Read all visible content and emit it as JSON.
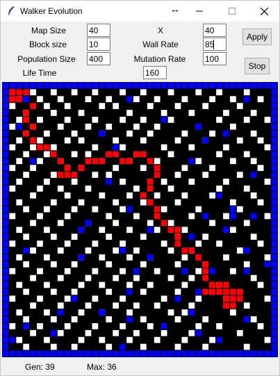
{
  "window": {
    "title": "Walker Evolution",
    "resize_glyph": "↔",
    "minimize_glyph": "—",
    "maximize_glyph": "☐",
    "close_glyph": "✕"
  },
  "params": {
    "map_size": {
      "label": "Map Size",
      "value": "40"
    },
    "block_size": {
      "label": "Block size",
      "value": "10"
    },
    "population_size": {
      "label": "Population Size",
      "value": "400"
    },
    "life_time": {
      "label": "Life Time",
      "value": "160"
    },
    "x": {
      "label": "X",
      "value": "40"
    },
    "wall_rate": {
      "label": "Wall Rate",
      "value": "85"
    },
    "mutation_rate": {
      "label": "Mutation Rate",
      "value": "100"
    }
  },
  "buttons": {
    "apply": "Apply",
    "stop": "Stop"
  },
  "status": {
    "gen": "Gen: 39",
    "max": "Max: 36"
  },
  "colors": {
    "border": "#0000ff",
    "wall": "#ffffff",
    "walker_path": "#ff0000",
    "obstacle": "#0000ff",
    "background": "#000000"
  },
  "map": {
    "cols": 40,
    "rows": 40,
    "walls": [
      [
        1,
        1
      ],
      [
        4,
        1
      ],
      [
        7,
        1
      ],
      [
        10,
        1
      ],
      [
        13,
        1
      ],
      [
        17,
        1
      ],
      [
        20,
        1
      ],
      [
        24,
        1
      ],
      [
        28,
        1
      ],
      [
        31,
        1
      ],
      [
        35,
        1
      ],
      [
        2,
        2
      ],
      [
        5,
        2
      ],
      [
        8,
        2
      ],
      [
        12,
        2
      ],
      [
        15,
        2
      ],
      [
        19,
        2
      ],
      [
        22,
        2
      ],
      [
        26,
        2
      ],
      [
        30,
        2
      ],
      [
        33,
        2
      ],
      [
        37,
        2
      ],
      [
        1,
        3
      ],
      [
        6,
        3
      ],
      [
        9,
        3
      ],
      [
        14,
        3
      ],
      [
        16,
        3
      ],
      [
        21,
        3
      ],
      [
        25,
        3
      ],
      [
        29,
        3
      ],
      [
        34,
        3
      ],
      [
        3,
        4
      ],
      [
        7,
        4
      ],
      [
        11,
        4
      ],
      [
        18,
        4
      ],
      [
        23,
        4
      ],
      [
        27,
        4
      ],
      [
        32,
        4
      ],
      [
        36,
        4
      ],
      [
        2,
        5
      ],
      [
        5,
        5
      ],
      [
        9,
        5
      ],
      [
        13,
        5
      ],
      [
        17,
        5
      ],
      [
        20,
        5
      ],
      [
        24,
        5
      ],
      [
        31,
        5
      ],
      [
        35,
        5
      ],
      [
        38,
        5
      ],
      [
        1,
        6
      ],
      [
        4,
        6
      ],
      [
        8,
        6
      ],
      [
        12,
        6
      ],
      [
        15,
        6
      ],
      [
        19,
        6
      ],
      [
        22,
        6
      ],
      [
        28,
        6
      ],
      [
        33,
        6
      ],
      [
        3,
        7
      ],
      [
        6,
        7
      ],
      [
        10,
        7
      ],
      [
        14,
        7
      ],
      [
        18,
        7
      ],
      [
        21,
        7
      ],
      [
        26,
        7
      ],
      [
        30,
        7
      ],
      [
        36,
        7
      ],
      [
        2,
        8
      ],
      [
        5,
        8
      ],
      [
        9,
        8
      ],
      [
        11,
        8
      ],
      [
        16,
        8
      ],
      [
        20,
        8
      ],
      [
        25,
        8
      ],
      [
        29,
        8
      ],
      [
        34,
        8
      ],
      [
        37,
        8
      ],
      [
        1,
        9
      ],
      [
        4,
        9
      ],
      [
        7,
        9
      ],
      [
        13,
        9
      ],
      [
        17,
        9
      ],
      [
        23,
        9
      ],
      [
        27,
        9
      ],
      [
        32,
        9
      ],
      [
        38,
        9
      ],
      [
        3,
        10
      ],
      [
        6,
        10
      ],
      [
        10,
        10
      ],
      [
        12,
        10
      ],
      [
        15,
        10
      ],
      [
        19,
        10
      ],
      [
        24,
        10
      ],
      [
        31,
        10
      ],
      [
        35,
        10
      ],
      [
        2,
        11
      ],
      [
        5,
        11
      ],
      [
        8,
        11
      ],
      [
        14,
        11
      ],
      [
        18,
        11
      ],
      [
        22,
        11
      ],
      [
        28,
        11
      ],
      [
        33,
        11
      ],
      [
        36,
        11
      ],
      [
        1,
        12
      ],
      [
        4,
        12
      ],
      [
        9,
        12
      ],
      [
        11,
        12
      ],
      [
        16,
        12
      ],
      [
        20,
        12
      ],
      [
        26,
        12
      ],
      [
        30,
        12
      ],
      [
        37,
        12
      ],
      [
        3,
        13
      ],
      [
        7,
        13
      ],
      [
        13,
        13
      ],
      [
        15,
        13
      ],
      [
        25,
        13
      ],
      [
        29,
        13
      ],
      [
        34,
        13
      ],
      [
        2,
        14
      ],
      [
        6,
        14
      ],
      [
        10,
        14
      ],
      [
        17,
        14
      ],
      [
        23,
        14
      ],
      [
        27,
        14
      ],
      [
        32,
        14
      ],
      [
        38,
        14
      ],
      [
        1,
        15
      ],
      [
        5,
        15
      ],
      [
        8,
        15
      ],
      [
        12,
        15
      ],
      [
        19,
        15
      ],
      [
        24,
        15
      ],
      [
        31,
        15
      ],
      [
        35,
        15
      ],
      [
        4,
        16
      ],
      [
        9,
        16
      ],
      [
        14,
        16
      ],
      [
        18,
        16
      ],
      [
        22,
        16
      ],
      [
        26,
        16
      ],
      [
        30,
        16
      ],
      [
        36,
        16
      ],
      [
        2,
        17
      ],
      [
        7,
        17
      ],
      [
        11,
        17
      ],
      [
        16,
        17
      ],
      [
        20,
        17
      ],
      [
        25,
        17
      ],
      [
        33,
        17
      ],
      [
        37,
        17
      ],
      [
        3,
        18
      ],
      [
        6,
        18
      ],
      [
        10,
        18
      ],
      [
        13,
        18
      ],
      [
        17,
        18
      ],
      [
        23,
        18
      ],
      [
        28,
        18
      ],
      [
        34,
        18
      ],
      [
        1,
        19
      ],
      [
        5,
        19
      ],
      [
        9,
        19
      ],
      [
        15,
        19
      ],
      [
        19,
        19
      ],
      [
        27,
        19
      ],
      [
        32,
        19
      ],
      [
        38,
        19
      ],
      [
        4,
        20
      ],
      [
        8,
        20
      ],
      [
        12,
        20
      ],
      [
        16,
        20
      ],
      [
        21,
        20
      ],
      [
        24,
        20
      ],
      [
        30,
        20
      ],
      [
        35,
        20
      ],
      [
        2,
        21
      ],
      [
        6,
        21
      ],
      [
        11,
        21
      ],
      [
        14,
        21
      ],
      [
        18,
        21
      ],
      [
        22,
        21
      ],
      [
        26,
        21
      ],
      [
        33,
        21
      ],
      [
        3,
        22
      ],
      [
        7,
        22
      ],
      [
        10,
        22
      ],
      [
        15,
        22
      ],
      [
        20,
        22
      ],
      [
        25,
        22
      ],
      [
        29,
        22
      ],
      [
        36,
        22
      ],
      [
        1,
        23
      ],
      [
        5,
        23
      ],
      [
        9,
        23
      ],
      [
        13,
        23
      ],
      [
        17,
        23
      ],
      [
        23,
        23
      ],
      [
        28,
        23
      ],
      [
        31,
        23
      ],
      [
        37,
        23
      ],
      [
        4,
        24
      ],
      [
        8,
        24
      ],
      [
        12,
        24
      ],
      [
        16,
        24
      ],
      [
        19,
        24
      ],
      [
        24,
        24
      ],
      [
        27,
        24
      ],
      [
        34,
        24
      ],
      [
        2,
        25
      ],
      [
        6,
        25
      ],
      [
        11,
        25
      ],
      [
        14,
        25
      ],
      [
        18,
        25
      ],
      [
        21,
        25
      ],
      [
        26,
        25
      ],
      [
        32,
        25
      ],
      [
        38,
        25
      ],
      [
        3,
        26
      ],
      [
        7,
        26
      ],
      [
        10,
        26
      ],
      [
        15,
        26
      ],
      [
        20,
        26
      ],
      [
        25,
        26
      ],
      [
        29,
        26
      ],
      [
        35,
        26
      ],
      [
        1,
        27
      ],
      [
        5,
        27
      ],
      [
        9,
        27
      ],
      [
        13,
        27
      ],
      [
        17,
        27
      ],
      [
        22,
        27
      ],
      [
        28,
        27
      ],
      [
        33,
        27
      ],
      [
        4,
        28
      ],
      [
        8,
        28
      ],
      [
        12,
        28
      ],
      [
        16,
        28
      ],
      [
        19,
        28
      ],
      [
        24,
        28
      ],
      [
        27,
        28
      ],
      [
        36,
        28
      ],
      [
        2,
        29
      ],
      [
        6,
        29
      ],
      [
        11,
        29
      ],
      [
        14,
        29
      ],
      [
        18,
        29
      ],
      [
        21,
        29
      ],
      [
        26,
        29
      ],
      [
        31,
        29
      ],
      [
        37,
        29
      ],
      [
        3,
        30
      ],
      [
        7,
        30
      ],
      [
        10,
        30
      ],
      [
        15,
        30
      ],
      [
        20,
        30
      ],
      [
        25,
        30
      ],
      [
        30,
        30
      ],
      [
        34,
        30
      ],
      [
        1,
        31
      ],
      [
        5,
        31
      ],
      [
        9,
        31
      ],
      [
        13,
        31
      ],
      [
        17,
        31
      ],
      [
        23,
        31
      ],
      [
        28,
        31
      ],
      [
        32,
        31
      ],
      [
        38,
        31
      ],
      [
        4,
        32
      ],
      [
        8,
        32
      ],
      [
        12,
        32
      ],
      [
        16,
        32
      ],
      [
        19,
        32
      ],
      [
        22,
        32
      ],
      [
        27,
        32
      ],
      [
        35,
        32
      ],
      [
        2,
        33
      ],
      [
        6,
        33
      ],
      [
        11,
        33
      ],
      [
        14,
        33
      ],
      [
        18,
        33
      ],
      [
        24,
        33
      ],
      [
        26,
        33
      ],
      [
        33,
        33
      ],
      [
        3,
        34
      ],
      [
        7,
        34
      ],
      [
        10,
        34
      ],
      [
        15,
        34
      ],
      [
        20,
        34
      ],
      [
        25,
        34
      ],
      [
        29,
        34
      ],
      [
        36,
        34
      ],
      [
        1,
        35
      ],
      [
        5,
        35
      ],
      [
        9,
        35
      ],
      [
        13,
        35
      ],
      [
        17,
        35
      ],
      [
        21,
        35
      ],
      [
        28,
        35
      ],
      [
        31,
        35
      ],
      [
        37,
        35
      ],
      [
        4,
        36
      ],
      [
        8,
        36
      ],
      [
        12,
        36
      ],
      [
        16,
        36
      ],
      [
        19,
        36
      ],
      [
        23,
        36
      ],
      [
        27,
        36
      ],
      [
        34,
        36
      ],
      [
        2,
        37
      ],
      [
        6,
        37
      ],
      [
        11,
        37
      ],
      [
        14,
        37
      ],
      [
        18,
        37
      ],
      [
        22,
        37
      ],
      [
        26,
        37
      ],
      [
        30,
        37
      ],
      [
        38,
        37
      ],
      [
        3,
        38
      ],
      [
        7,
        38
      ],
      [
        10,
        38
      ],
      [
        15,
        38
      ],
      [
        20,
        38
      ],
      [
        25,
        38
      ],
      [
        29,
        38
      ],
      [
        35,
        38
      ]
    ],
    "blues": [
      [
        3,
        2
      ],
      [
        18,
        2
      ],
      [
        35,
        2
      ],
      [
        2,
        6
      ],
      [
        23,
        5
      ],
      [
        28,
        6
      ],
      [
        14,
        7
      ],
      [
        32,
        7
      ],
      [
        29,
        8
      ],
      [
        16,
        9
      ],
      [
        20,
        10
      ],
      [
        4,
        11
      ],
      [
        27,
        11
      ],
      [
        36,
        13
      ],
      [
        15,
        14
      ],
      [
        31,
        16
      ],
      [
        18,
        18
      ],
      [
        33,
        18
      ],
      [
        12,
        20
      ],
      [
        29,
        19
      ],
      [
        33,
        19
      ],
      [
        36,
        19
      ],
      [
        11,
        21
      ],
      [
        21,
        21
      ],
      [
        32,
        21
      ],
      [
        27,
        22
      ],
      [
        17,
        24
      ],
      [
        3,
        24
      ],
      [
        35,
        24
      ],
      [
        11,
        25
      ],
      [
        21,
        25
      ],
      [
        30,
        27
      ],
      [
        19,
        27
      ],
      [
        35,
        27
      ],
      [
        26,
        27
      ],
      [
        38,
        26
      ],
      [
        28,
        30
      ],
      [
        18,
        30
      ],
      [
        10,
        31
      ],
      [
        25,
        31
      ],
      [
        8,
        33
      ],
      [
        14,
        33
      ],
      [
        18,
        34
      ],
      [
        27,
        33
      ],
      [
        3,
        35
      ],
      [
        23,
        35
      ],
      [
        35,
        34
      ],
      [
        7,
        36
      ],
      [
        28,
        36
      ],
      [
        31,
        37
      ],
      [
        1,
        37
      ],
      [
        17,
        38
      ]
    ],
    "reds": [
      [
        1,
        1
      ],
      [
        2,
        1
      ],
      [
        3,
        1
      ],
      [
        1,
        2
      ],
      [
        2,
        2
      ],
      [
        4,
        3
      ],
      [
        3,
        4
      ],
      [
        3,
        5
      ],
      [
        4,
        6
      ],
      [
        3,
        7
      ],
      [
        4,
        8
      ],
      [
        5,
        9
      ],
      [
        6,
        9
      ],
      [
        7,
        10
      ],
      [
        8,
        11
      ],
      [
        9,
        12
      ],
      [
        9,
        13
      ],
      [
        10,
        13
      ],
      [
        8,
        13
      ],
      [
        11,
        12
      ],
      [
        12,
        11
      ],
      [
        13,
        11
      ],
      [
        14,
        11
      ],
      [
        15,
        10
      ],
      [
        16,
        10
      ],
      [
        17,
        11
      ],
      [
        18,
        11
      ],
      [
        19,
        10
      ],
      [
        20,
        10
      ],
      [
        21,
        11
      ],
      [
        22,
        12
      ],
      [
        22,
        13
      ],
      [
        21,
        14
      ],
      [
        21,
        15
      ],
      [
        20,
        16
      ],
      [
        21,
        17
      ],
      [
        22,
        18
      ],
      [
        22,
        19
      ],
      [
        23,
        20
      ],
      [
        24,
        21
      ],
      [
        25,
        21
      ],
      [
        25,
        22
      ],
      [
        25,
        23
      ],
      [
        26,
        24
      ],
      [
        27,
        24
      ],
      [
        28,
        25
      ],
      [
        29,
        26
      ],
      [
        29,
        27
      ],
      [
        29,
        28
      ],
      [
        30,
        29
      ],
      [
        31,
        29
      ],
      [
        32,
        30
      ],
      [
        32,
        31
      ],
      [
        33,
        31
      ],
      [
        34,
        31
      ],
      [
        33,
        32
      ],
      [
        32,
        32
      ],
      [
        30,
        29
      ],
      [
        29,
        30
      ],
      [
        30,
        30
      ],
      [
        31,
        30
      ],
      [
        32,
        29
      ],
      [
        33,
        30
      ],
      [
        34,
        30
      ]
    ]
  }
}
